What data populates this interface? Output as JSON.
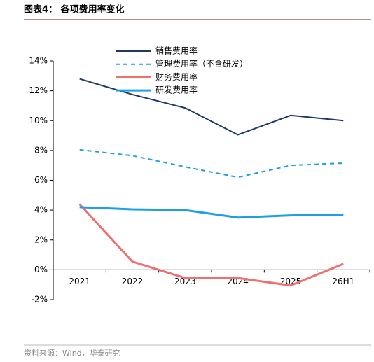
{
  "chart_data": {
    "type": "line",
    "title": "图表4： 各项费用率变化",
    "source": "资料来源：Wind，华泰研究",
    "categories": [
      "2021",
      "2022",
      "2023",
      "2024",
      "2025",
      "26H1"
    ],
    "series": [
      {
        "name": "销售费用率",
        "color": "#1f3864",
        "dash": false,
        "width": 2,
        "values": [
          12.8,
          11.75,
          10.85,
          9.05,
          10.35,
          10.0
        ]
      },
      {
        "name": "管理费用率（不含研发）",
        "color": "#1aa0e0",
        "dash": true,
        "width": 2,
        "values": [
          8.05,
          7.65,
          6.9,
          6.2,
          7.0,
          7.15
        ]
      },
      {
        "name": "财务费用率",
        "color": "#f07070",
        "dash": false,
        "width": 3,
        "values": [
          4.4,
          0.55,
          -0.55,
          -0.55,
          -1.05,
          0.4
        ]
      },
      {
        "name": "研发费用率",
        "color": "#1ea0e6",
        "dash": false,
        "width": 3,
        "values": [
          4.2,
          4.05,
          4.0,
          3.5,
          3.65,
          3.7
        ]
      }
    ],
    "ylim": [
      -2,
      14
    ],
    "yticks": [
      {
        "value": -2,
        "label": "-2%"
      },
      {
        "value": 0,
        "label": "0%"
      },
      {
        "value": 2,
        "label": "2%"
      },
      {
        "value": 4,
        "label": "4%"
      },
      {
        "value": 6,
        "label": "6%"
      },
      {
        "value": 8,
        "label": "8%"
      },
      {
        "value": 10,
        "label": "10%"
      },
      {
        "value": 12,
        "label": "12%"
      },
      {
        "value": 14,
        "label": "14%"
      }
    ]
  }
}
